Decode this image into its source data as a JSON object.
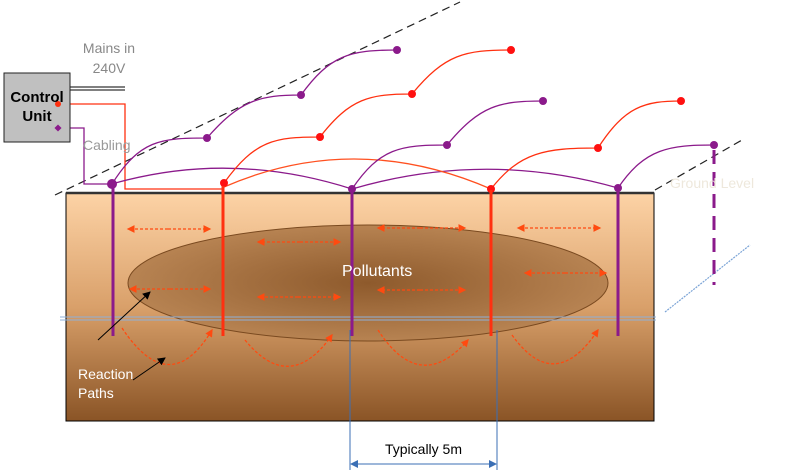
{
  "labels": {
    "mains": "Mains in",
    "voltage": "240V",
    "control_unit_line1": "Control",
    "control_unit_line2": "Unit",
    "cabling": "Cabling",
    "ground_level": "Ground Level",
    "pollutants": "Pollutants",
    "reaction_paths_line1": "Reaction",
    "reaction_paths_line2": "Paths",
    "spacing": "Typically 5m"
  },
  "colors": {
    "purple": "#8b1a8b",
    "red": "#ff3010",
    "soil_top": "#fdd3a6",
    "soil_bottom": "#8a5426",
    "pollutant": "#a4703f"
  }
}
